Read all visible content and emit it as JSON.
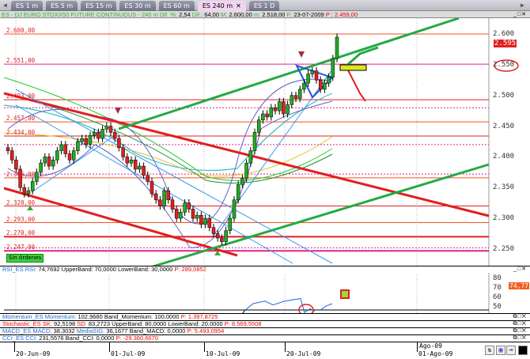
{
  "tabs": [
    {
      "label": "ES 1 m"
    },
    {
      "label": "ES 5 m"
    },
    {
      "label": "ES 15 m"
    },
    {
      "label": "ES 30 m"
    },
    {
      "label": "ES 60 m"
    },
    {
      "label": "ES 240 m",
      "active": true
    },
    {
      "label": "ES 1 D"
    }
  ],
  "tab_close": "✕",
  "info": {
    "symbol": "ES - DJ EURO STOXX50 FUTURE CONTINUOUS - 240 m",
    "dif_pct_label": "Dif. %:",
    "dif_pct": "2,54",
    "dif_label": "Dif.:",
    "dif": "64,00",
    "max_label": "M:",
    "max": "2.600,00",
    "min_label": "m:",
    "min": "2.518,00",
    "date_label": "F:",
    "date": "23-07-2009",
    "p_label": "P :",
    "p": "2.459,00"
  },
  "levels": [
    "2.600,00",
    "2.551,00",
    "2.493,00",
    "2.457,00",
    "2.434,00",
    "2.366,00",
    "2.320,00",
    "2.293,00",
    "2.270,00",
    "2.247,00"
  ],
  "price_axis": {
    "ticks": [
      "2.600",
      "2.550",
      "2.500",
      "2.450",
      "2.400",
      "2.350",
      "2.300",
      "2.250"
    ],
    "last_price": "2.595",
    "last_price_color": "#e02020",
    "circled": "2.550"
  },
  "orders_label": "Sin órdenes",
  "rsi": {
    "name": "RSI_ES RSI:",
    "value": "74,7692",
    "upper_label": "UpperBand:",
    "upper": "70,0000",
    "lower_label": "LowerBand:",
    "lower": "30,0000",
    "p_label": "P:",
    "p": "289,0852",
    "axis": [
      "80",
      "70",
      "60",
      "50"
    ],
    "last": "74,77"
  },
  "momentum": {
    "name": "Momentum_ES Momentum:",
    "value": "102,9680",
    "band_label": "Band_Momentum:",
    "band": "100,0000",
    "p_label": "P:",
    "p": "1.397,8725"
  },
  "stochastic": {
    "name": "Stochastic_ES SK:",
    "sk": "92,5198",
    "sd_label": "SD:",
    "sd": "83,2723",
    "upper_label": "UpperBand:",
    "upper": "80,0000",
    "lower_label": "LowerBand:",
    "lower": "20,0000",
    "p_label": "P:",
    "p": "8.569,5508"
  },
  "macd": {
    "name": "MACD_ES MACD:",
    "value": "38,3032",
    "sig_label": "MediaSIG:",
    "sig": "36,1677",
    "band_label": "Band_MACD:",
    "band": "0,0000",
    "p_label": "P:",
    "p": "5.493,0954"
  },
  "cci": {
    "name": "CCI_ES CCI:",
    "value": "231,5576",
    "band_label": "Band_CCI:",
    "band": "0,0000",
    "p_label": "P:",
    "p": "-29.360,6670"
  },
  "dates": [
    "20-Jun-09",
    "01-Jul-09",
    "10-Jul-09",
    "20-Jul-09",
    "01-Ago-09"
  ],
  "date_upper": "Ago-09",
  "colors": {
    "up": "#22aa22",
    "down": "#e02020",
    "tab_active": "#f2d4f0"
  },
  "chart_data": {
    "type": "candlestick",
    "timeframe": "240 m",
    "closes": [
      2410,
      2395,
      2380,
      2350,
      2340,
      2345,
      2360,
      2375,
      2390,
      2400,
      2385,
      2395,
      2410,
      2420,
      2405,
      2395,
      2410,
      2425,
      2430,
      2420,
      2435,
      2440,
      2430,
      2445,
      2450,
      2440,
      2430,
      2415,
      2400,
      2390,
      2395,
      2380,
      2385,
      2370,
      2360,
      2340,
      2330,
      2320,
      2345,
      2330,
      2315,
      2300,
      2310,
      2325,
      2315,
      2300,
      2305,
      2290,
      2300,
      2285,
      2275,
      2268,
      2262,
      2280,
      2300,
      2330,
      2355,
      2365,
      2390,
      2410,
      2440,
      2460,
      2470,
      2465,
      2480,
      2475,
      2490,
      2470,
      2485,
      2500,
      2495,
      2510,
      2520,
      2535,
      2540,
      2525,
      2510,
      2520,
      2530,
      2560,
      2595
    ],
    "ylim": [
      2225,
      2630
    ]
  }
}
